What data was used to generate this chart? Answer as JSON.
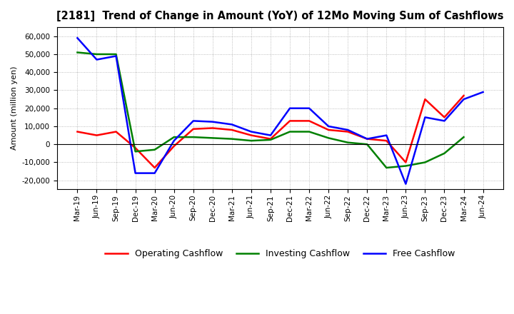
{
  "title": "[2181]  Trend of Change in Amount (YoY) of 12Mo Moving Sum of Cashflows",
  "ylabel": "Amount (million yen)",
  "x_labels": [
    "Mar-19",
    "Jun-19",
    "Sep-19",
    "Dec-19",
    "Mar-20",
    "Jun-20",
    "Sep-20",
    "Dec-20",
    "Mar-21",
    "Jun-21",
    "Sep-21",
    "Dec-21",
    "Mar-22",
    "Jun-22",
    "Sep-22",
    "Dec-22",
    "Mar-23",
    "Jun-23",
    "Sep-23",
    "Dec-23",
    "Mar-24",
    "Jun-24"
  ],
  "operating": [
    7000,
    5000,
    7000,
    -2000,
    -13000,
    -1000,
    8500,
    9000,
    8000,
    5000,
    3000,
    13000,
    13000,
    8000,
    7000,
    3000,
    2000,
    -10000,
    25000,
    15000,
    27000,
    null
  ],
  "investing": [
    51000,
    50000,
    50000,
    -4000,
    -3000,
    4000,
    4000,
    3500,
    3000,
    2000,
    2500,
    7000,
    7000,
    3500,
    1000,
    0,
    -13000,
    -12000,
    -10000,
    -5000,
    4000,
    null
  ],
  "free": [
    59000,
    47000,
    49000,
    -16000,
    -16000,
    2000,
    13000,
    12500,
    11000,
    7000,
    5000,
    20000,
    20000,
    10000,
    8000,
    3000,
    5000,
    -22000,
    15000,
    13000,
    25000,
    29000
  ],
  "ylim": [
    -25000,
    65000
  ],
  "yticks": [
    -20000,
    -10000,
    0,
    10000,
    20000,
    30000,
    40000,
    50000,
    60000
  ],
  "operating_color": "#ff0000",
  "investing_color": "#008000",
  "free_color": "#0000ff",
  "background_color": "#ffffff",
  "grid_color": "#aaaaaa",
  "legend_labels": [
    "Operating Cashflow",
    "Investing Cashflow",
    "Free Cashflow"
  ],
  "title_fontsize": 10.5,
  "axis_label_fontsize": 8,
  "tick_fontsize": 7.5,
  "legend_fontsize": 9,
  "linewidth": 1.8
}
